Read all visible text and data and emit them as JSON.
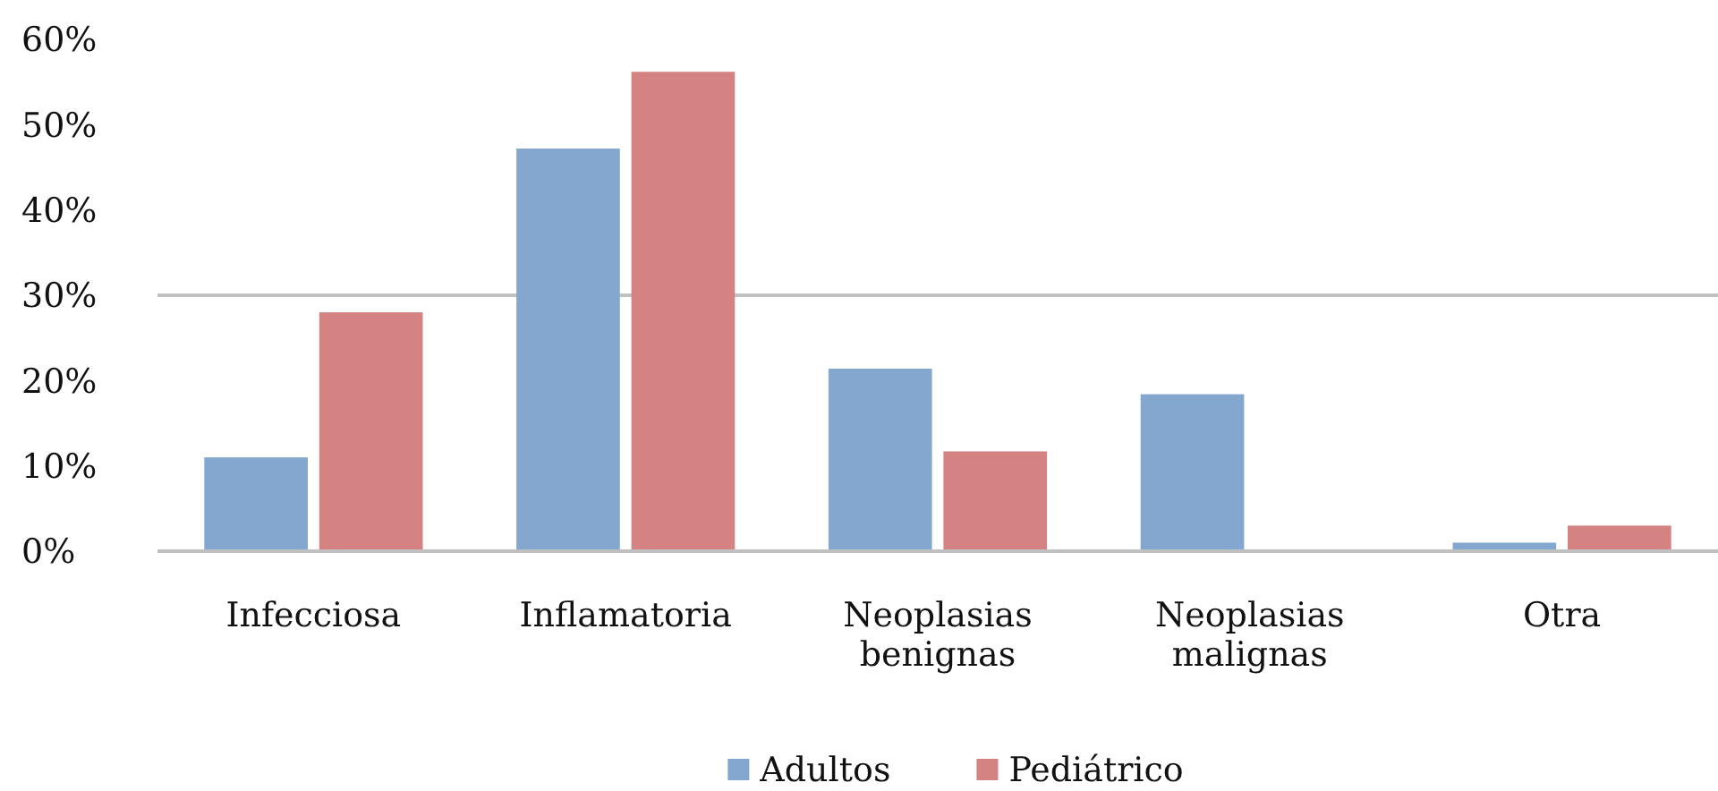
{
  "chart_data": {
    "type": "bar",
    "categories": [
      "Infecciosa",
      "Inflamatoria",
      "Neoplasias benignas",
      "Neoplasias malignas",
      "Otra"
    ],
    "series": [
      {
        "name": "Adultos",
        "color": "#84a7d0",
        "values": [
          11,
          47.2,
          21.4,
          18.4,
          1
        ]
      },
      {
        "name": "Pediátrico",
        "color": "#d48282",
        "values": [
          28,
          56.2,
          11.7,
          0,
          3
        ]
      }
    ],
    "ylim": [
      0,
      60
    ],
    "yticks": [
      {
        "value": 0,
        "label": "0%"
      },
      {
        "value": 10,
        "label": "10%"
      },
      {
        "value": 20,
        "label": "20%"
      },
      {
        "value": 30,
        "label": "30%"
      },
      {
        "value": 40,
        "label": "40%"
      },
      {
        "value": 50,
        "label": "50%"
      },
      {
        "value": 60,
        "label": "60%"
      }
    ],
    "ref_lines": [
      {
        "axis": "y",
        "value": 30,
        "color": "#c0c0c0"
      }
    ],
    "grid": false,
    "legend": "bottom"
  }
}
